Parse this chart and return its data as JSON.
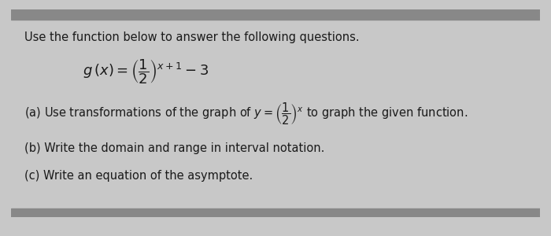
{
  "bg_color": "#c8c8c8",
  "panel_color": "#e2e0e0",
  "title_text": "Use the function below to answer the following questions.",
  "title_fontsize": 10.5,
  "func_formula": "$g\\,(x)=\\left(\\dfrac{1}{2}\\right)^{x+1}-3$",
  "func_fontsize": 13,
  "part_a_text": "(a) Use transformations of the graph of $y=\\left(\\dfrac{1}{2}\\right)^{x}$ to graph the given function.",
  "part_b": "(b) Write the domain and range in interval notation.",
  "part_c": "(c) Write an equation of the asymptote.",
  "text_fontsize": 10.5,
  "text_color": "#1a1a1a"
}
